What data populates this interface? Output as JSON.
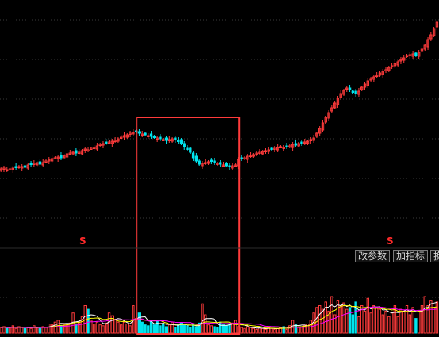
{
  "toolbar": {
    "param_label": "改参数",
    "indicator_label": "加指标",
    "more_label": "换"
  },
  "signals": [
    "S",
    "S"
  ],
  "colors": {
    "background": "#000000",
    "up": "#ff3b3b",
    "down": "#00e5ee",
    "highlight_box": "#ff3b3b",
    "grid": "#3a3a3a",
    "ma_volume_1": "#ffffff",
    "ma_volume_2": "#ffff00",
    "ma_volume_3": "#ff00ff"
  },
  "chart_data": [
    {
      "type": "candlestick",
      "panel": "price",
      "title": "",
      "grid": true,
      "highlighted_range": {
        "from_bar": 46,
        "to_bar": 78
      },
      "close": [
        213,
        212,
        214,
        213,
        212,
        211,
        210,
        210,
        211,
        208,
        207,
        206,
        205,
        207,
        205,
        203,
        201,
        200,
        199,
        198,
        199,
        196,
        194,
        193,
        192,
        193,
        192,
        190,
        188,
        189,
        187,
        186,
        184,
        182,
        181,
        180,
        179,
        178,
        177,
        175,
        173,
        171,
        170,
        168,
        167,
        166,
        168,
        169,
        170,
        171,
        172,
        173,
        174,
        175,
        176,
        177,
        176,
        175,
        176,
        178,
        181,
        185,
        188,
        192,
        199,
        203,
        207,
        206,
        205,
        204,
        203,
        205,
        206,
        207,
        208,
        209,
        210,
        209,
        208,
        201,
        200,
        199,
        197,
        196,
        195,
        193,
        192,
        191,
        190,
        189,
        188,
        187,
        186,
        185,
        186,
        185,
        184,
        182,
        183,
        181,
        180,
        179,
        178,
        176,
        174,
        168,
        162,
        155,
        148,
        142,
        136,
        130,
        124,
        118,
        114,
        111,
        113,
        116,
        118,
        115,
        110,
        106,
        102,
        99,
        97,
        95,
        92,
        90,
        88,
        85,
        83,
        80,
        78,
        75,
        73,
        70,
        69,
        68,
        70,
        66,
        62,
        57,
        50,
        44,
        36,
        28
      ]
    },
    {
      "type": "bar",
      "panel": "volume",
      "title": "",
      "grid": true,
      "volume": [
        6,
        7,
        5,
        6,
        8,
        5,
        7,
        6,
        5,
        6,
        5,
        8,
        6,
        5,
        7,
        6,
        10,
        9,
        12,
        14,
        8,
        9,
        10,
        11,
        22,
        10,
        12,
        18,
        30,
        26,
        14,
        10,
        12,
        9,
        8,
        11,
        22,
        19,
        15,
        12,
        9,
        12,
        10,
        8,
        30,
        16,
        22,
        12,
        9,
        8,
        13,
        9,
        14,
        8,
        10,
        7,
        9,
        12,
        6,
        9,
        11,
        10,
        8,
        6,
        9,
        7,
        11,
        32,
        20,
        9,
        8,
        7,
        6,
        12,
        9,
        8,
        10,
        11,
        14,
        7,
        6,
        5,
        7,
        6,
        5,
        4,
        6,
        5,
        4,
        6,
        5,
        4,
        5,
        6,
        7,
        4,
        8,
        14,
        9,
        6,
        7,
        8,
        10,
        14,
        22,
        28,
        30,
        26,
        34,
        24,
        40,
        20,
        36,
        30,
        33,
        26,
        28,
        20,
        34,
        18,
        30,
        24,
        38,
        22,
        30,
        28,
        26,
        20,
        24,
        18,
        22,
        30,
        18,
        26,
        24,
        30,
        20,
        28,
        16,
        24,
        30,
        40,
        30,
        36,
        28,
        34
      ]
    }
  ]
}
